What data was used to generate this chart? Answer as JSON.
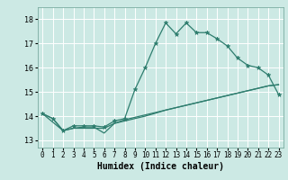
{
  "title": "",
  "xlabel": "Humidex (Indice chaleur)",
  "ylabel": "",
  "bg_color": "#cce9e4",
  "grid_color": "#ffffff",
  "line_color": "#2e7d6e",
  "xlim": [
    -0.5,
    23.5
  ],
  "ylim": [
    12.7,
    18.5
  ],
  "xticks": [
    0,
    1,
    2,
    3,
    4,
    5,
    6,
    7,
    8,
    9,
    10,
    11,
    12,
    13,
    14,
    15,
    16,
    17,
    18,
    19,
    20,
    21,
    22,
    23
  ],
  "yticks": [
    13,
    14,
    15,
    16,
    17,
    18
  ],
  "line1_x": [
    0,
    1,
    2,
    3,
    4,
    5,
    6,
    7,
    8,
    9,
    10,
    11,
    12,
    13,
    14,
    15,
    16,
    17,
    18,
    19,
    20,
    21,
    22,
    23
  ],
  "line1_y": [
    14.1,
    13.9,
    13.4,
    13.6,
    13.6,
    13.6,
    13.55,
    13.8,
    13.9,
    15.1,
    16.0,
    17.0,
    17.85,
    17.4,
    17.85,
    17.45,
    17.45,
    17.2,
    16.9,
    16.4,
    16.1,
    16.0,
    15.7,
    14.9
  ],
  "line2_x": [
    0,
    1,
    2,
    3,
    4,
    5,
    6,
    7,
    8,
    9,
    10,
    11,
    12,
    13,
    14,
    15,
    16,
    17,
    18,
    19,
    20,
    21,
    22,
    23
  ],
  "line2_y": [
    14.1,
    13.9,
    13.4,
    13.5,
    13.5,
    13.5,
    13.5,
    13.7,
    13.85,
    13.95,
    14.05,
    14.15,
    14.25,
    14.35,
    14.45,
    14.55,
    14.65,
    14.75,
    14.85,
    14.95,
    15.05,
    15.15,
    15.25,
    15.3
  ],
  "line3_x": [
    0,
    2,
    3,
    4,
    5,
    6,
    7,
    8,
    9,
    10,
    11,
    12,
    13,
    14,
    15,
    16,
    17,
    18,
    19,
    20,
    21,
    22,
    23
  ],
  "line3_y": [
    14.1,
    13.4,
    13.5,
    13.55,
    13.55,
    13.3,
    13.7,
    13.8,
    13.9,
    14.0,
    14.12,
    14.25,
    14.35,
    14.45,
    14.55,
    14.65,
    14.75,
    14.85,
    14.95,
    15.05,
    15.15,
    15.25,
    15.3
  ]
}
